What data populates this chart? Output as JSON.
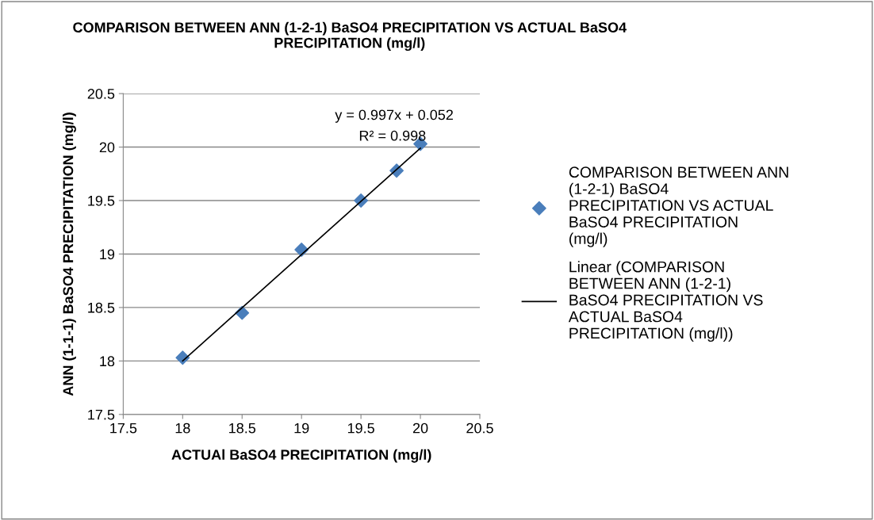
{
  "chart_data": {
    "type": "scatter",
    "title": "COMPARISON BETWEEN ANN (1-2-1) BaSO4 PRECIPITATION VS ACTUAL BaSO4 PRECIPITATION (mg/l)",
    "xlabel": "ACTUAl BaSO4 PRECIPITATION (mg/l)",
    "ylabel": "ANN (1-1-1) BaSO4 PRECIPITATION (mg/l)",
    "x": [
      18,
      18.5,
      19,
      19.5,
      19.8,
      20
    ],
    "series": [
      {
        "name": "COMPARISON BETWEEN ANN (1-2-1) BaSO4 PRECIPITATION VS ACTUAL BaSO4 PRECIPITATION (mg/l)",
        "color": "#4a7ebb",
        "values": [
          18.03,
          18.45,
          19.04,
          19.5,
          19.78,
          20.03
        ],
        "marker": "diamond"
      },
      {
        "name": "Linear (COMPARISON BETWEEN ANN (1-2-1) BaSO4 PRECIPITATION VS ACTUAL BaSO4 PRECIPITATION (mg/l))",
        "type": "line",
        "color": "#000000",
        "x": [
          18,
          20
        ],
        "values": [
          18.0,
          19.99
        ]
      }
    ],
    "annotations": [
      "y = 0.997x + 0.052",
      "R² = 0.998"
    ],
    "xlim": [
      17.5,
      20.5
    ],
    "xticks": [
      17.5,
      18,
      18.5,
      19,
      19.5,
      20,
      20.5
    ],
    "ylim": [
      17.5,
      20.5
    ],
    "yticks": [
      17.5,
      18,
      18.5,
      19,
      19.5,
      20,
      20.5
    ],
    "grid": "y",
    "legend": "right"
  }
}
